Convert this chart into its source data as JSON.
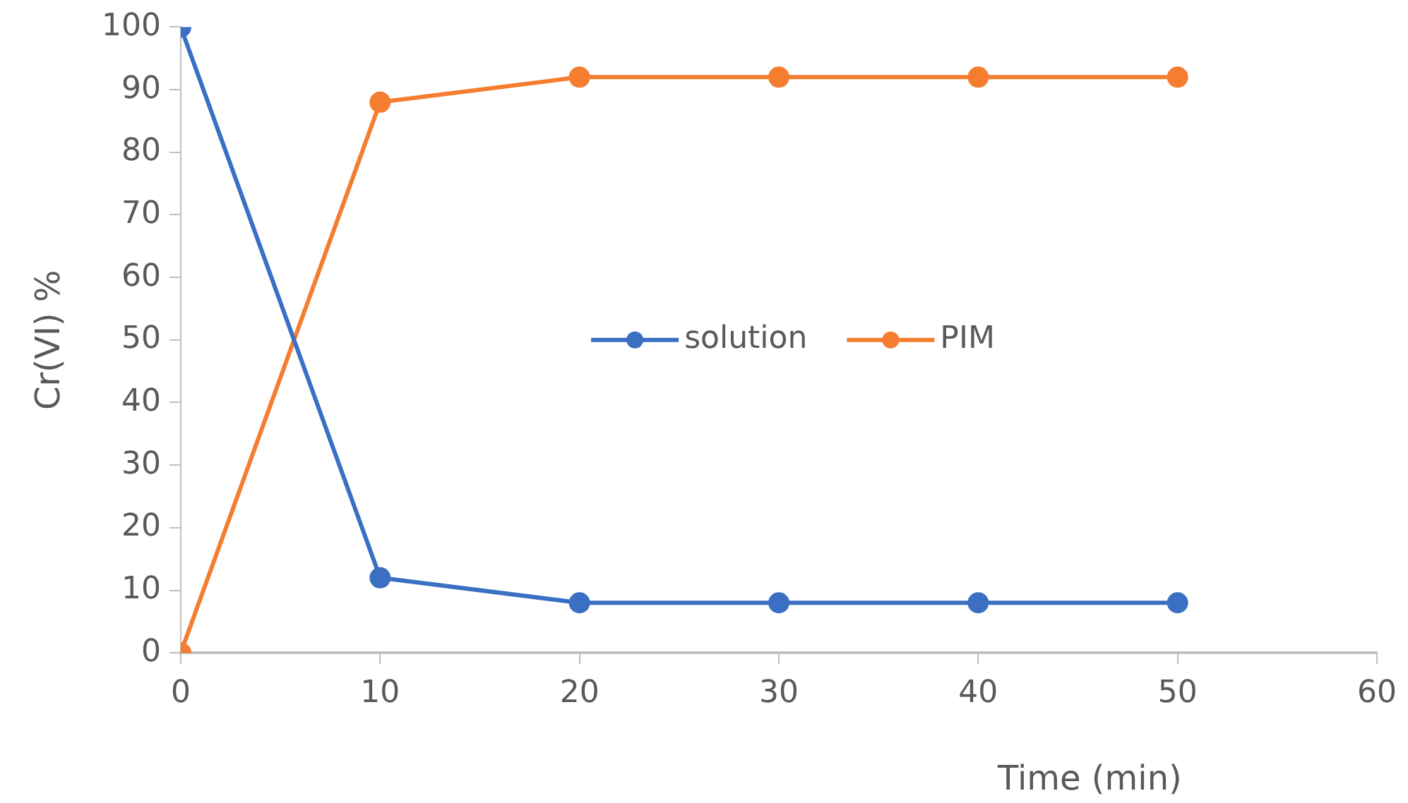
{
  "chart_data": {
    "type": "line",
    "xlabel": "Time (min)",
    "ylabel": "Cr(VI) %",
    "x": [
      0,
      10,
      20,
      30,
      40,
      50
    ],
    "series": [
      {
        "name": "solution",
        "color": "#3a6fc4",
        "values": [
          100,
          12,
          8,
          8,
          8,
          8
        ]
      },
      {
        "name": "PIM",
        "color": "#f47d30",
        "values": [
          0,
          88,
          92,
          92,
          92,
          92
        ]
      }
    ],
    "xlim": [
      0,
      60
    ],
    "xticks": [
      0,
      10,
      20,
      30,
      40,
      50,
      60
    ],
    "ylim": [
      0,
      100
    ],
    "yticks": [
      0,
      10,
      20,
      30,
      40,
      50,
      60,
      70,
      80,
      90,
      100
    ],
    "grid": false,
    "legend": "center",
    "marker": "circle",
    "line_style": "solid"
  }
}
